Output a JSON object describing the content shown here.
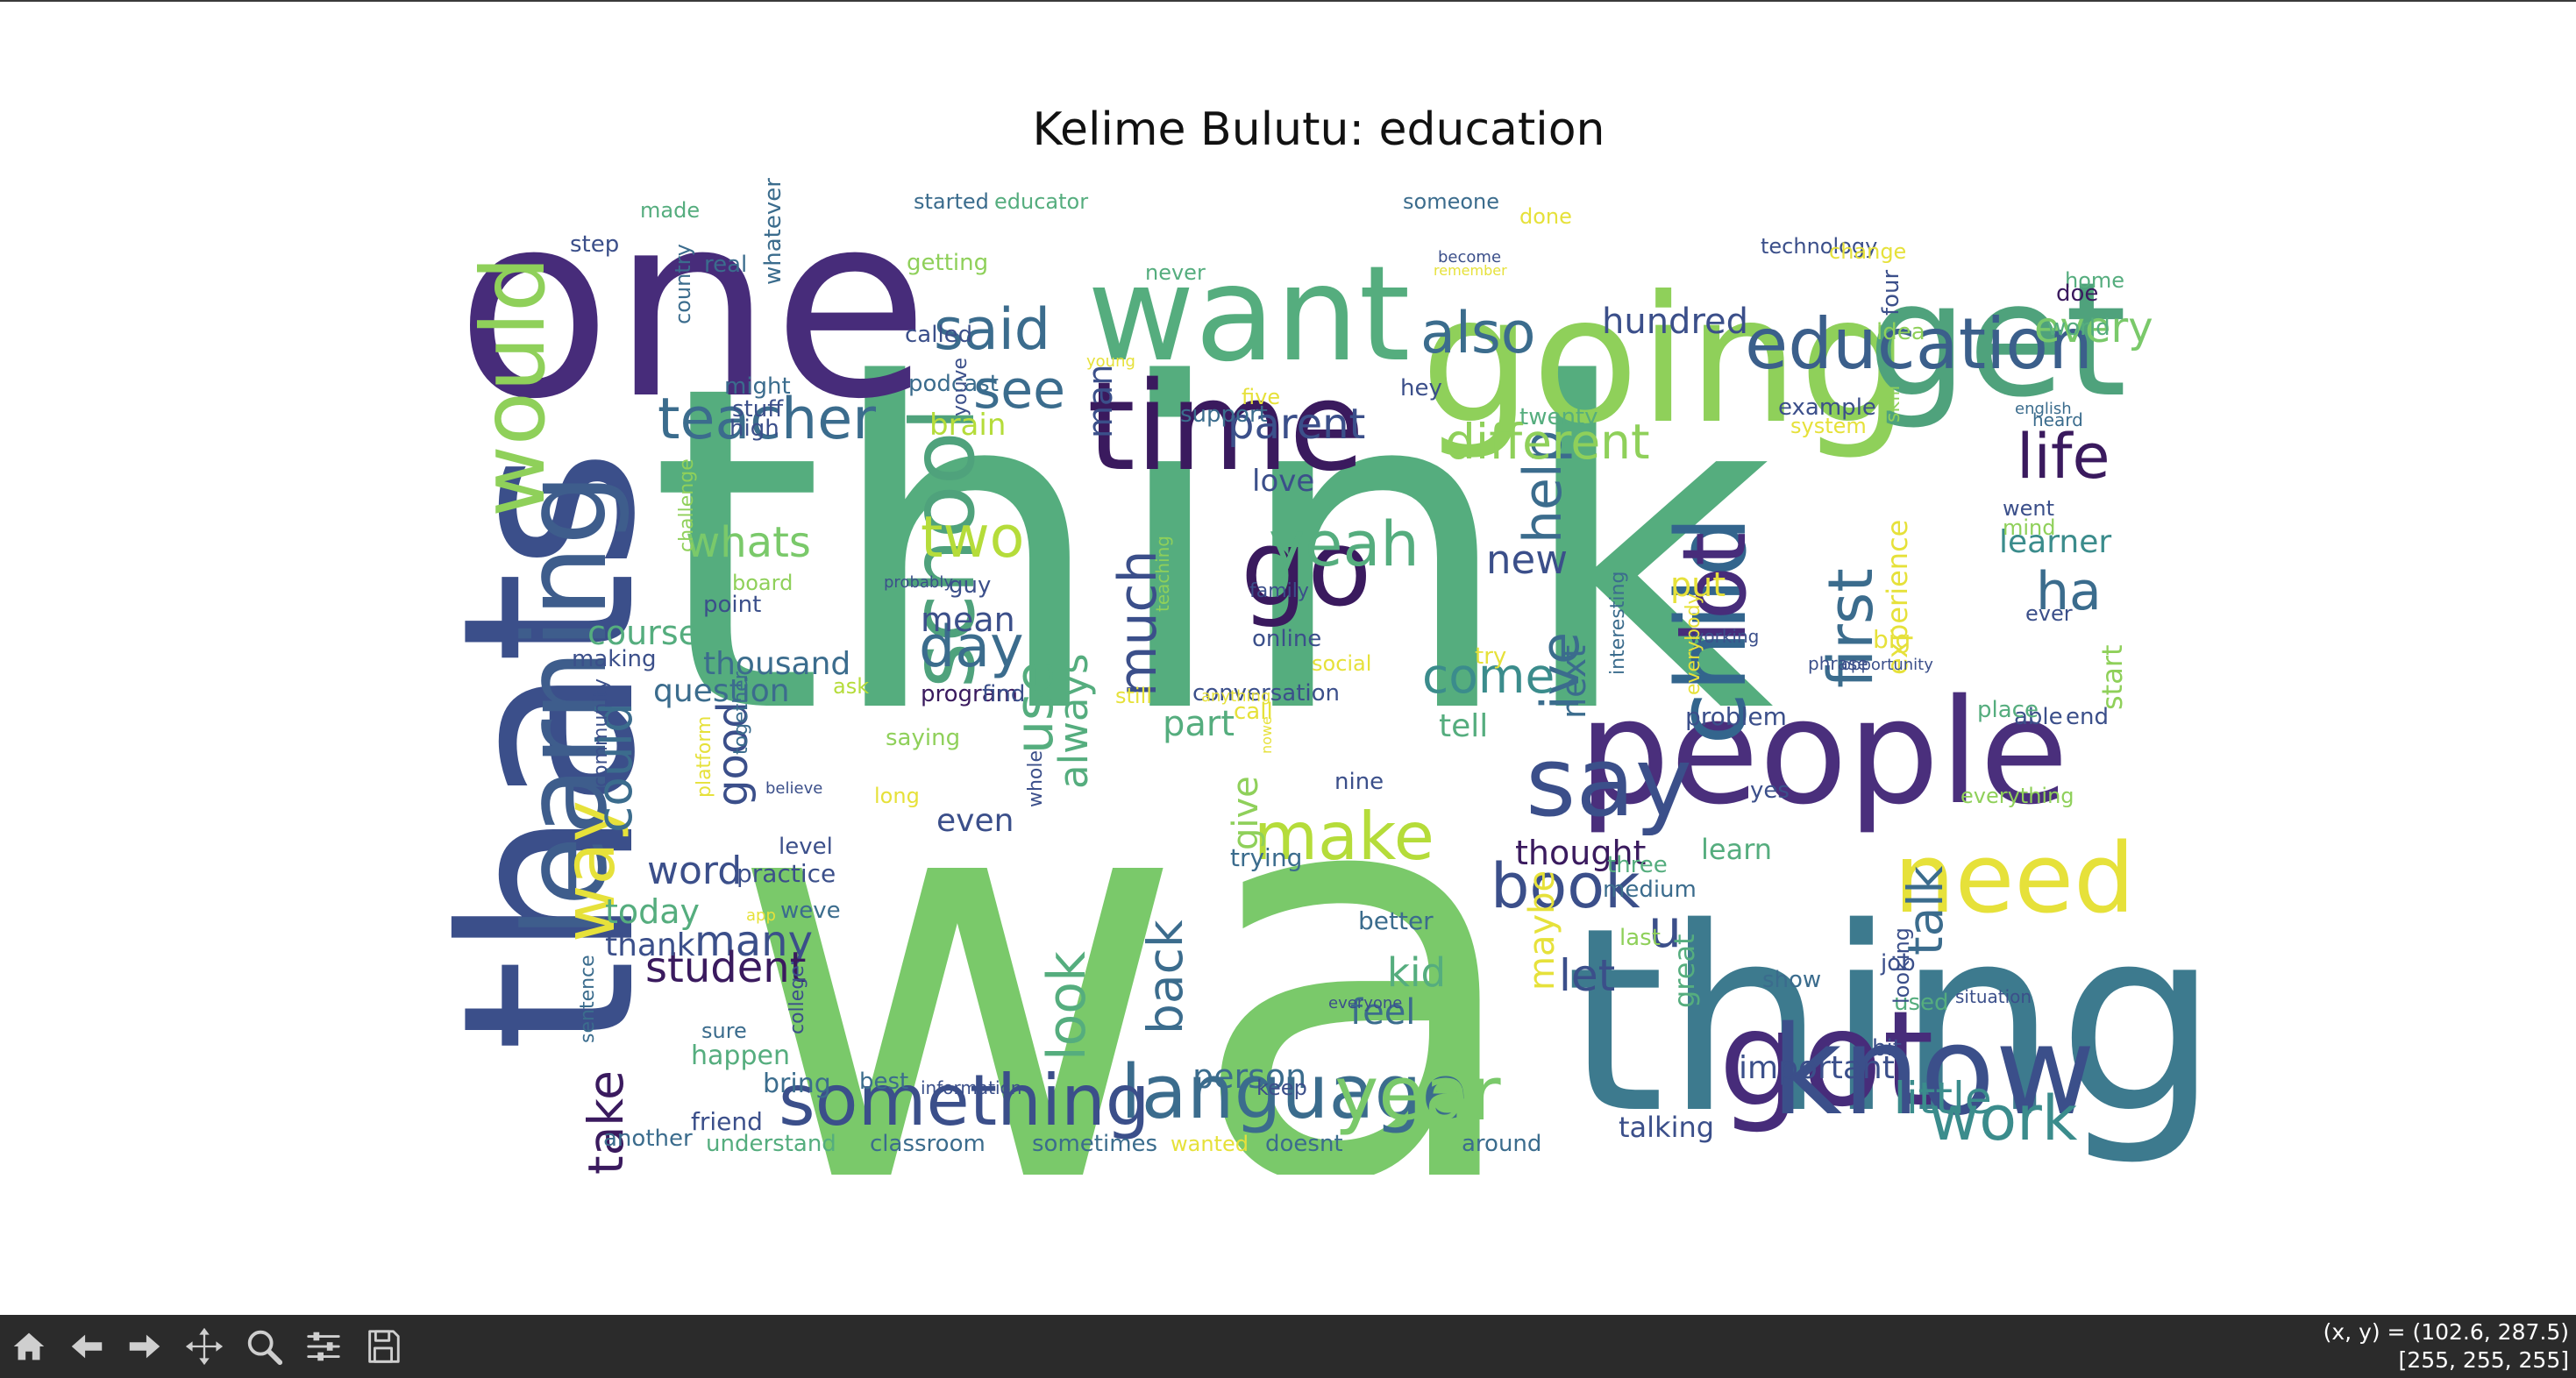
{
  "figure": {
    "title": "Kelime Bulutu: education"
  },
  "toolbar": {
    "buttons": [
      {
        "id": "home",
        "icon": "home-icon"
      },
      {
        "id": "back",
        "icon": "arrow-left-icon"
      },
      {
        "id": "forward",
        "icon": "arrow-right-icon"
      },
      {
        "id": "pan",
        "icon": "move-icon"
      },
      {
        "id": "zoom",
        "icon": "magnifier-icon"
      },
      {
        "id": "configure",
        "icon": "sliders-icon"
      },
      {
        "id": "save",
        "icon": "floppy-disk-icon"
      }
    ]
  },
  "status": {
    "coords": "(x, y) = (102.6, 287.5)",
    "pixel": "[255, 255, 255]"
  },
  "colors": {
    "toolbar_bg": "#2b2b2b",
    "palette": [
      "#440154",
      "#472c7a",
      "#3b518b",
      "#2c718e",
      "#21908d",
      "#27ad81",
      "#5cc863",
      "#aadc32",
      "#fde725"
    ]
  },
  "wordcloud": {
    "words": [
      {
        "text": "wa",
        "color": "#7ac96a"
      },
      {
        "text": "think",
        "color": "#55ad7e"
      },
      {
        "text": "thing",
        "color": "#3d7a8e"
      },
      {
        "text": "thats",
        "color": "#3b4f8a"
      },
      {
        "text": "one",
        "color": "#472c7a"
      },
      {
        "text": "going",
        "color": "#8fd05a"
      },
      {
        "text": "get",
        "color": "#4fa27c"
      },
      {
        "text": "people",
        "color": "#4a2f7c"
      },
      {
        "text": "want",
        "color": "#55ad7e"
      },
      {
        "text": "time",
        "color": "#3a1a5e"
      },
      {
        "text": "learning",
        "color": "#3e5d8c"
      },
      {
        "text": "got",
        "color": "#472c7a"
      },
      {
        "text": "know",
        "color": "#3b4f8a"
      },
      {
        "text": "child",
        "color": "#33658d"
      },
      {
        "text": "need",
        "color": "#e6e13a"
      },
      {
        "text": "say",
        "color": "#3b4f8a"
      },
      {
        "text": "school",
        "color": "#4fa27c"
      },
      {
        "text": "would",
        "color": "#8fd05a"
      },
      {
        "text": "education",
        "color": "#3b5f8b"
      },
      {
        "text": "lot",
        "color": "#472c7a"
      },
      {
        "text": "go",
        "color": "#3a1a5e"
      },
      {
        "text": "language",
        "color": "#3b6c8d"
      },
      {
        "text": "something",
        "color": "#3b4f8a"
      },
      {
        "text": "year",
        "color": "#7ac96a"
      },
      {
        "text": "way",
        "color": "#e6e13a"
      },
      {
        "text": "teacher",
        "color": "#3b6c8d"
      },
      {
        "text": "make",
        "color": "#b5dc3a"
      },
      {
        "text": "work",
        "color": "#3b8c8c"
      },
      {
        "text": "book",
        "color": "#3b4f8a"
      },
      {
        "text": "said",
        "color": "#3b6c8d"
      },
      {
        "text": "also",
        "color": "#3b6c8d"
      },
      {
        "text": "life",
        "color": "#3a1a5e"
      },
      {
        "text": "first",
        "color": "#3b6c8d"
      },
      {
        "text": "use",
        "color": "#55ad7e"
      },
      {
        "text": "much",
        "color": "#3b4f8a"
      },
      {
        "text": "yeah",
        "color": "#55ad7e"
      },
      {
        "text": "two",
        "color": "#b5dc3a"
      },
      {
        "text": "day",
        "color": "#3b6c8d"
      },
      {
        "text": "see",
        "color": "#3b6c8d"
      },
      {
        "text": "ive",
        "color": "#3b6c8d"
      },
      {
        "text": "help",
        "color": "#3b6c8d"
      },
      {
        "text": "different",
        "color": "#8fd05a"
      },
      {
        "text": "could",
        "color": "#3b6c8d"
      },
      {
        "text": "take",
        "color": "#3a1a5e"
      },
      {
        "text": "look",
        "color": "#55ad7e"
      },
      {
        "text": "back",
        "color": "#3b6c8d"
      },
      {
        "text": "little",
        "color": "#3b8c8c"
      },
      {
        "text": "talk",
        "color": "#3b6c8d"
      },
      {
        "text": "come",
        "color": "#3b8c8c"
      },
      {
        "text": "ha",
        "color": "#3b6c8d"
      },
      {
        "text": "every",
        "color": "#7ac96a"
      },
      {
        "text": "parent",
        "color": "#3b4f8a"
      },
      {
        "text": "good",
        "color": "#3b4f8a"
      },
      {
        "text": "many",
        "color": "#3b4f8a"
      },
      {
        "text": "student",
        "color": "#3a1a5e"
      },
      {
        "text": "whats",
        "color": "#7ac96a"
      },
      {
        "text": "always",
        "color": "#55ad7e"
      },
      {
        "text": "give",
        "color": "#8fd05a"
      },
      {
        "text": "let",
        "color": "#3b4f8a"
      },
      {
        "text": "u",
        "color": "#3b4f8a"
      },
      {
        "text": "kid",
        "color": "#55ad7e"
      },
      {
        "text": "feel",
        "color": "#3b6c8d"
      },
      {
        "text": "maybe",
        "color": "#e6e13a"
      },
      {
        "text": "person",
        "color": "#3b6c8d"
      },
      {
        "text": "word",
        "color": "#3b4f8a"
      },
      {
        "text": "thousand",
        "color": "#3b6c8d"
      },
      {
        "text": "question",
        "color": "#3b6c8d"
      },
      {
        "text": "new",
        "color": "#3b4f8a"
      },
      {
        "text": "next",
        "color": "#3b6c8d"
      },
      {
        "text": "learner",
        "color": "#3b8c8c"
      },
      {
        "text": "experience",
        "color": "#e6e13a"
      },
      {
        "text": "hundred",
        "color": "#3b4f8a"
      },
      {
        "text": "course",
        "color": "#55ad7e"
      },
      {
        "text": "mean",
        "color": "#3b4f8a"
      },
      {
        "text": "part",
        "color": "#55ad7e"
      },
      {
        "text": "tell",
        "color": "#55ad7e"
      },
      {
        "text": "problem",
        "color": "#3b4f8a"
      },
      {
        "text": "important",
        "color": "#3b4f8a"
      },
      {
        "text": "thought",
        "color": "#3a1a5e"
      },
      {
        "text": "learn",
        "color": "#55ad7e"
      },
      {
        "text": "today",
        "color": "#55ad7e"
      },
      {
        "text": "thank",
        "color": "#3b4f8a"
      },
      {
        "text": "even",
        "color": "#3b4f8a"
      },
      {
        "text": "love",
        "color": "#3b4f8a"
      },
      {
        "text": "put",
        "color": "#e6e13a"
      },
      {
        "text": "man",
        "color": "#3b4f8a"
      },
      {
        "text": "brain",
        "color": "#b5dc3a"
      },
      {
        "text": "happen",
        "color": "#55ad7e"
      },
      {
        "text": "bring",
        "color": "#3b6c8d"
      },
      {
        "text": "friend",
        "color": "#3b4f8a"
      },
      {
        "text": "another",
        "color": "#3b6c8d"
      },
      {
        "text": "understand",
        "color": "#55ad7e"
      },
      {
        "text": "classroom",
        "color": "#3b6c8d"
      },
      {
        "text": "sometimes",
        "color": "#3b6c8d"
      },
      {
        "text": "wanted",
        "color": "#e6e13a"
      },
      {
        "text": "doesnt",
        "color": "#3b6c8d"
      },
      {
        "text": "around",
        "color": "#3b6c8d"
      },
      {
        "text": "talking",
        "color": "#3b4f8a"
      },
      {
        "text": "practice",
        "color": "#3b4f8a"
      },
      {
        "text": "conversation",
        "color": "#3b4f8a"
      },
      {
        "text": "program",
        "color": "#3a1a5e"
      },
      {
        "text": "find",
        "color": "#3b4f8a"
      },
      {
        "text": "saying",
        "color": "#8fd05a"
      },
      {
        "text": "long",
        "color": "#e6e13a"
      },
      {
        "text": "nine",
        "color": "#3b4f8a"
      },
      {
        "text": "trying",
        "color": "#3b6c8d"
      },
      {
        "text": "three",
        "color": "#55ad7e"
      },
      {
        "text": "medium",
        "color": "#3b6c8d"
      },
      {
        "text": "better",
        "color": "#3b6c8d"
      },
      {
        "text": "last",
        "color": "#8fd05a"
      },
      {
        "text": "great",
        "color": "#55ad7e"
      },
      {
        "text": "show",
        "color": "#3b6c8d"
      },
      {
        "text": "job",
        "color": "#3b4f8a"
      },
      {
        "text": "used",
        "color": "#55ad7e"
      },
      {
        "text": "bit",
        "color": "#3b4f8a"
      },
      {
        "text": "keep",
        "color": "#3b4f8a"
      },
      {
        "text": "best",
        "color": "#3b6c8d"
      },
      {
        "text": "information",
        "color": "#3b4f8a"
      },
      {
        "text": "level",
        "color": "#3b4f8a"
      },
      {
        "text": "weve",
        "color": "#3b6c8d"
      },
      {
        "text": "sure",
        "color": "#3b6c8d"
      },
      {
        "text": "point",
        "color": "#3b4f8a"
      },
      {
        "text": "making",
        "color": "#3b4f8a"
      },
      {
        "text": "board",
        "color": "#8fd05a"
      },
      {
        "text": "stuff",
        "color": "#3b4f8a"
      },
      {
        "text": "high",
        "color": "#3b4f8a"
      },
      {
        "text": "might",
        "color": "#3b6c8d"
      },
      {
        "text": "ask",
        "color": "#b5dc3a"
      },
      {
        "text": "step",
        "color": "#3b4f8a"
      },
      {
        "text": "made",
        "color": "#55ad7e"
      },
      {
        "text": "real",
        "color": "#3b6c8d"
      },
      {
        "text": "started",
        "color": "#3b6c8d"
      },
      {
        "text": "educator",
        "color": "#55ad7e"
      },
      {
        "text": "getting",
        "color": "#8fd05a"
      },
      {
        "text": "called",
        "color": "#3b4f8a"
      },
      {
        "text": "podcast",
        "color": "#3b6c8d"
      },
      {
        "text": "someone",
        "color": "#3b6c8d"
      },
      {
        "text": "never",
        "color": "#55ad7e"
      },
      {
        "text": "done",
        "color": "#e6e13a"
      },
      {
        "text": "become",
        "color": "#3b4f8a"
      },
      {
        "text": "remember",
        "color": "#e6e13a"
      },
      {
        "text": "technology",
        "color": "#3b4f8a"
      },
      {
        "text": "change",
        "color": "#e6e13a"
      },
      {
        "text": "home",
        "color": "#55ad7e"
      },
      {
        "text": "doe",
        "color": "#3a1a5e"
      },
      {
        "text": "idea",
        "color": "#8fd05a"
      },
      {
        "text": "world",
        "color": "#55ad7e"
      },
      {
        "text": "hey",
        "color": "#3b4f8a"
      },
      {
        "text": "twenty",
        "color": "#55ad7e"
      },
      {
        "text": "support",
        "color": "#3b6c8d"
      },
      {
        "text": "five",
        "color": "#e6e13a"
      },
      {
        "text": "young",
        "color": "#e6e13a"
      },
      {
        "text": "example",
        "color": "#3b4f8a"
      },
      {
        "text": "system",
        "color": "#e6e13a"
      },
      {
        "text": "english",
        "color": "#3b6c8d"
      },
      {
        "text": "heard",
        "color": "#3b6c8d"
      },
      {
        "text": "went",
        "color": "#3b4f8a"
      },
      {
        "text": "mind",
        "color": "#8fd05a"
      },
      {
        "text": "ever",
        "color": "#3b4f8a"
      },
      {
        "text": "big",
        "color": "#e6e13a"
      },
      {
        "text": "phrase",
        "color": "#3b4f8a"
      },
      {
        "text": "opportunity",
        "color": "#3b4f8a"
      },
      {
        "text": "able",
        "color": "#3b4f8a"
      },
      {
        "text": "end",
        "color": "#3b4f8a"
      },
      {
        "text": "place",
        "color": "#55ad7e"
      },
      {
        "text": "start",
        "color": "#8fd05a"
      },
      {
        "text": "everything",
        "color": "#8fd05a"
      },
      {
        "text": "yes",
        "color": "#3b4f8a"
      },
      {
        "text": "situation",
        "color": "#3b4f8a"
      },
      {
        "text": "probably",
        "color": "#3b4f8a"
      },
      {
        "text": "guy",
        "color": "#3b4f8a"
      },
      {
        "text": "family",
        "color": "#3b4f8a"
      },
      {
        "text": "online",
        "color": "#3b4f8a"
      },
      {
        "text": "social",
        "color": "#e6e13a"
      },
      {
        "text": "try",
        "color": "#e6e13a"
      },
      {
        "text": "still",
        "color": "#e6e13a"
      },
      {
        "text": "anything",
        "color": "#e6e13a"
      },
      {
        "text": "call",
        "color": "#e6e13a"
      },
      {
        "text": "everyone",
        "color": "#3b4f8a"
      },
      {
        "text": "working",
        "color": "#3b4f8a"
      },
      {
        "text": "interesting",
        "color": "#3b6c8d"
      },
      {
        "text": "everybody",
        "color": "#e6e13a"
      },
      {
        "text": "teaching",
        "color": "#8fd05a"
      },
      {
        "text": "together",
        "color": "#3b6c8d"
      },
      {
        "text": "whole",
        "color": "#3b4f8a"
      },
      {
        "text": "believe",
        "color": "#3b4f8a"
      },
      {
        "text": "platform",
        "color": "#e6e13a"
      },
      {
        "text": "app",
        "color": "#e6e13a"
      },
      {
        "text": "college",
        "color": "#3b4f8a"
      },
      {
        "text": "community",
        "color": "#3b4f8a"
      },
      {
        "text": "sentence",
        "color": "#3b6c8d"
      },
      {
        "text": "challenge",
        "color": "#8fd05a"
      },
      {
        "text": "country",
        "color": "#3b6c8d"
      },
      {
        "text": "whatever",
        "color": "#3b6c8d"
      },
      {
        "text": "youve",
        "color": "#3b4f8a"
      },
      {
        "text": "four",
        "color": "#3b4f8a"
      },
      {
        "text": "skill",
        "color": "#8fd05a"
      },
      {
        "text": "looking",
        "color": "#3b4f8a"
      },
      {
        "text": "nowe",
        "color": "#e6e13a"
      }
    ]
  }
}
